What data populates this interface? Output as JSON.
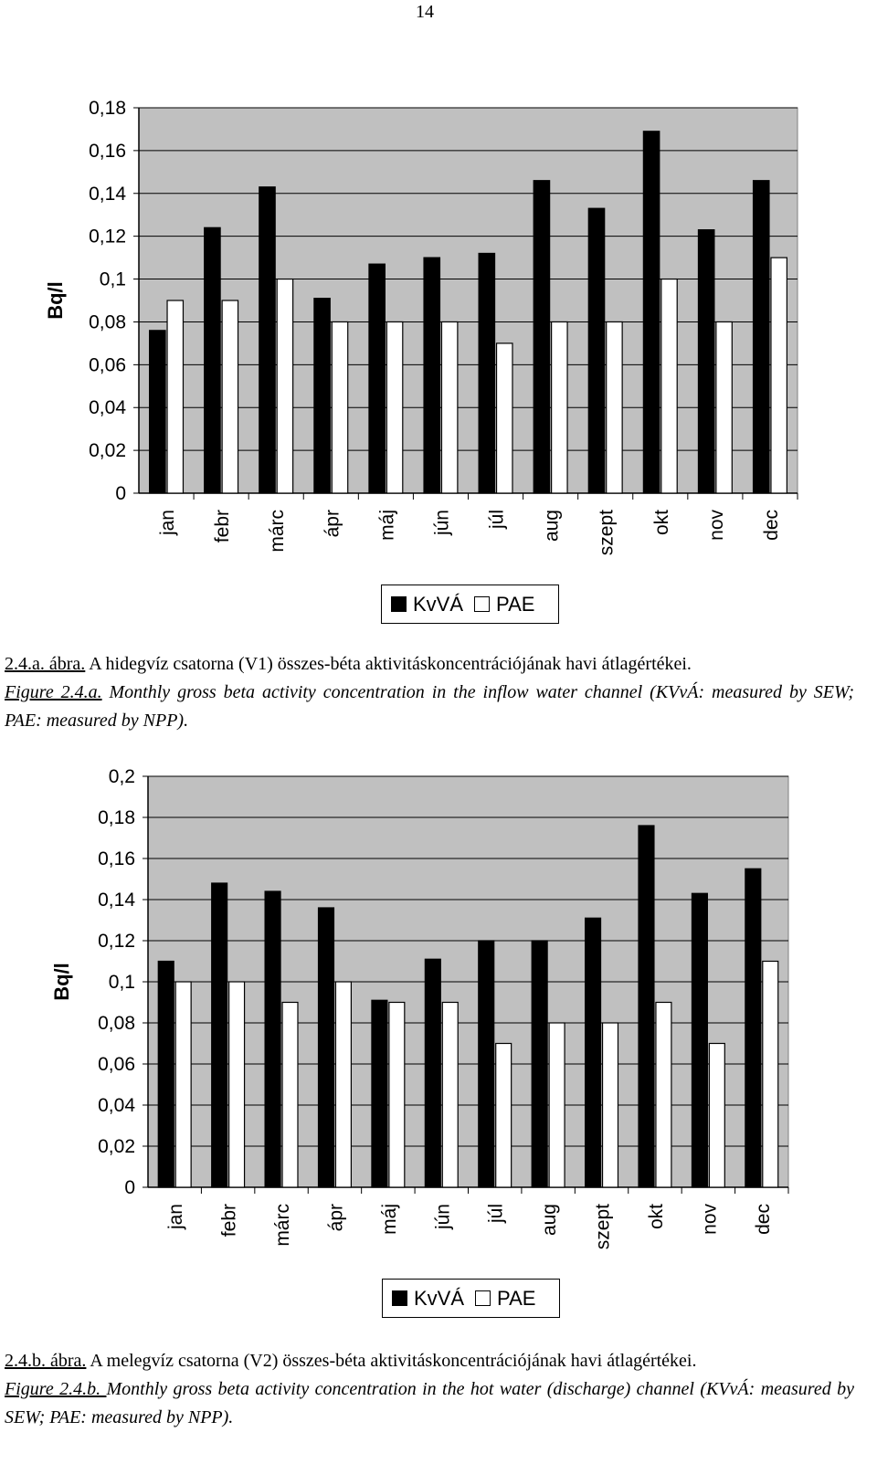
{
  "page_number": "14",
  "colors": {
    "plot_bg": "#c0c0c0",
    "kvva": "#000000",
    "pae": "#ffffff",
    "grid": "#000000"
  },
  "charts": [
    {
      "ylabel": "Bq/l",
      "legend": [
        "KvVÁ",
        "PAE"
      ],
      "caption": {
        "hu_ref": "2.4.a. ábra.",
        "hu_text": " A hidegvíz csatorna (V1) összes-béta aktivitáskoncentrációjának havi átlagértékei.",
        "en_ref": "Figure 2.4.a.",
        "en_text": " Monthly gross beta activity concentration in the inflow water channel (KVvÁ: measured by SEW; PAE: measured by NPP)."
      }
    },
    {
      "ylabel": "Bq/l",
      "legend": [
        "KvVÁ",
        "PAE"
      ],
      "caption": {
        "hu_ref": "2.4.b. ábra.",
        "hu_text": " A melegvíz csatorna (V2) összes-béta aktivitáskoncentrációjának havi átlagértékei.",
        "en_ref": "Figure 2.4.b. ",
        "en_text": "Monthly gross beta activity concentration in the hot water (discharge) channel (KVvÁ: measured by SEW; PAE: measured by NPP)."
      }
    }
  ],
  "chart_data": [
    {
      "type": "bar",
      "categories": [
        "jan",
        "febr",
        "márc",
        "ápr",
        "máj",
        "jún",
        "júl",
        "aug",
        "szept",
        "okt",
        "nov",
        "dec"
      ],
      "series": [
        {
          "name": "KvVÁ",
          "values": [
            0.076,
            0.124,
            0.143,
            0.091,
            0.107,
            0.11,
            0.112,
            0.146,
            0.133,
            0.169,
            0.123,
            0.146
          ]
        },
        {
          "name": "PAE",
          "values": [
            0.09,
            0.09,
            0.1,
            0.08,
            0.08,
            0.08,
            0.07,
            0.08,
            0.08,
            0.1,
            0.08,
            0.11
          ]
        }
      ],
      "ylabel": "Bq/l",
      "ylim": [
        0,
        0.18
      ],
      "yticks": [
        "0",
        "0,02",
        "0,04",
        "0,06",
        "0,08",
        "0,1",
        "0,12",
        "0,14",
        "0,16",
        "0,18"
      ],
      "grid": true,
      "legend": "bottom"
    },
    {
      "type": "bar",
      "categories": [
        "jan",
        "febr",
        "márc",
        "ápr",
        "máj",
        "jún",
        "júl",
        "aug",
        "szept",
        "okt",
        "nov",
        "dec"
      ],
      "series": [
        {
          "name": "KvVÁ",
          "values": [
            0.11,
            0.148,
            0.144,
            0.136,
            0.091,
            0.111,
            0.12,
            0.12,
            0.131,
            0.176,
            0.143,
            0.155
          ]
        },
        {
          "name": "PAE",
          "values": [
            0.1,
            0.1,
            0.09,
            0.1,
            0.09,
            0.09,
            0.07,
            0.08,
            0.08,
            0.09,
            0.07,
            0.11
          ]
        }
      ],
      "ylabel": "Bq/l",
      "ylim": [
        0,
        0.2
      ],
      "yticks": [
        "0",
        "0,02",
        "0,04",
        "0,06",
        "0,08",
        "0,1",
        "0,12",
        "0,14",
        "0,16",
        "0,18",
        "0,2"
      ],
      "grid": true,
      "legend": "bottom"
    }
  ]
}
